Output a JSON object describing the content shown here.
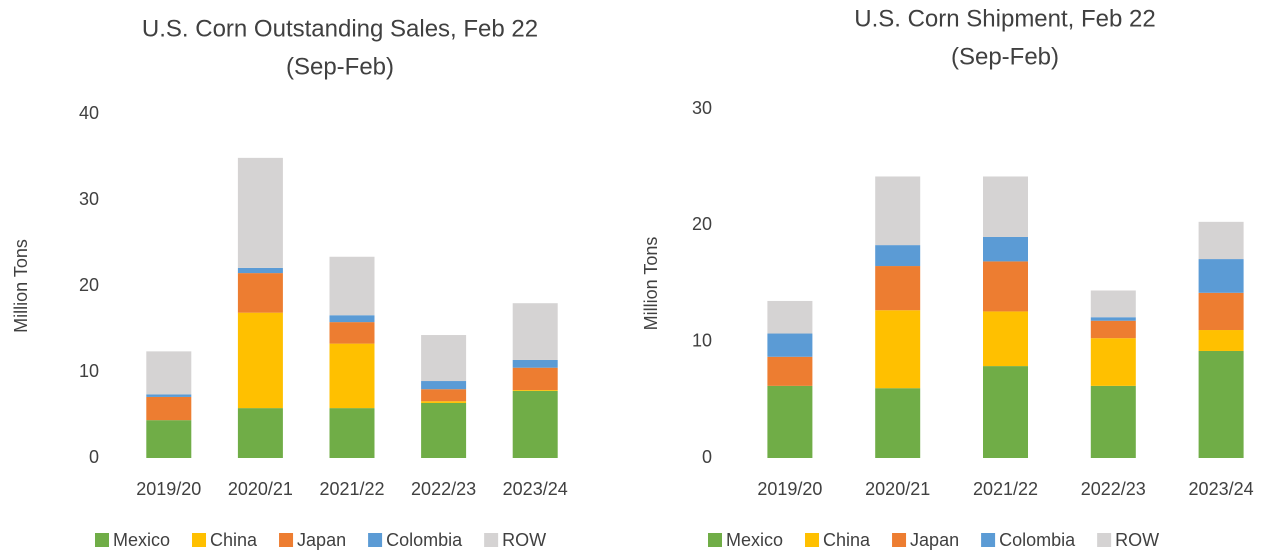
{
  "chart_data": [
    {
      "type": "stacked_bar",
      "title": "U.S. Corn Outstanding Sales, Feb 22",
      "subtitle": "(Sep-Feb)",
      "y_label": "Million Tons",
      "categories": [
        "2019/20",
        "2020/21",
        "2021/22",
        "2022/23",
        "2023/24"
      ],
      "series": [
        {
          "name": "Mexico",
          "color": "#70ad47",
          "values": [
            4.4,
            5.8,
            5.8,
            6.4,
            7.8
          ]
        },
        {
          "name": "China",
          "color": "#ffc000",
          "values": [
            0,
            11.1,
            7.5,
            0.2,
            0.1
          ]
        },
        {
          "name": "Japan",
          "color": "#ed7d31",
          "values": [
            2.7,
            4.6,
            2.5,
            1.4,
            2.6
          ]
        },
        {
          "name": "Colombia",
          "color": "#5b9bd5",
          "values": [
            0.3,
            0.6,
            0.8,
            0.95,
            0.9
          ]
        },
        {
          "name": "ROW",
          "color": "#d5d3d3",
          "values": [
            5.0,
            12.8,
            6.8,
            5.35,
            6.6
          ]
        }
      ],
      "ylim": [
        0,
        40
      ],
      "yticks": [
        0,
        10,
        20,
        30,
        40
      ],
      "grid": false,
      "legend": "bottom"
    },
    {
      "type": "stacked_bar",
      "title": "U.S. Corn Shipment, Feb 22",
      "subtitle": "(Sep-Feb)",
      "y_label": "Million Tons",
      "categories": [
        "2019/20",
        "2020/21",
        "2021/22",
        "2022/23",
        "2023/24"
      ],
      "series": [
        {
          "name": "Mexico",
          "color": "#70ad47",
          "values": [
            6.2,
            6.0,
            7.9,
            6.2,
            9.2
          ]
        },
        {
          "name": "China",
          "color": "#ffc000",
          "values": [
            0,
            6.7,
            4.7,
            4.1,
            1.8
          ]
        },
        {
          "name": "Japan",
          "color": "#ed7d31",
          "values": [
            2.5,
            3.8,
            4.3,
            1.5,
            3.2
          ]
        },
        {
          "name": "Colombia",
          "color": "#5b9bd5",
          "values": [
            2.0,
            1.8,
            2.1,
            0.3,
            2.9
          ]
        },
        {
          "name": "ROW",
          "color": "#d5d3d3",
          "values": [
            2.8,
            5.9,
            5.2,
            2.3,
            3.2
          ]
        }
      ],
      "ylim": [
        0,
        30
      ],
      "yticks": [
        0,
        10,
        20,
        30
      ],
      "grid": false,
      "legend": "bottom"
    }
  ]
}
